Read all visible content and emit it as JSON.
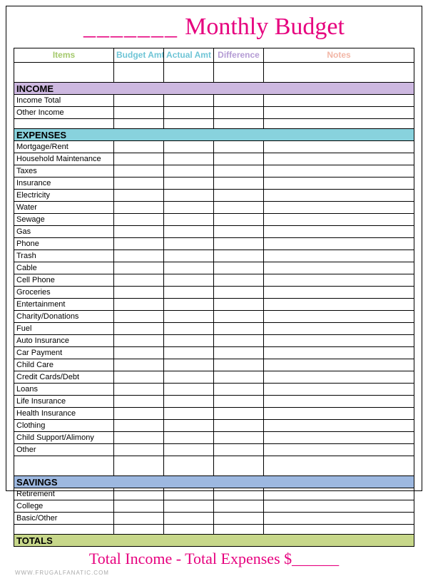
{
  "title": {
    "blank": "_______",
    "text": "Monthly Budget"
  },
  "columns": {
    "items": {
      "label": "Items",
      "color": "#a4c96b"
    },
    "budget": {
      "label": "Budget Amt",
      "color": "#6fc5d6"
    },
    "actual": {
      "label": "Actual Amt",
      "color": "#6fc5d6"
    },
    "diff": {
      "label": "Difference",
      "color": "#b49bd4"
    },
    "notes": {
      "label": "Notes",
      "color": "#f2b6a6"
    }
  },
  "sections": {
    "income": {
      "label": "INCOME",
      "bg": "#cdb8e0"
    },
    "expenses": {
      "label": "EXPENSES",
      "bg": "#88d2dd"
    },
    "savings": {
      "label": "SAVINGS",
      "bg": "#9db8e0"
    },
    "totals": {
      "label": "TOTALS",
      "bg": "#c7d78a"
    }
  },
  "income_rows": [
    "Income Total",
    "Other Income"
  ],
  "expense_rows": [
    "Mortgage/Rent",
    "Household Maintenance",
    "Taxes",
    "Insurance",
    "Electricity",
    "Water",
    "Sewage",
    "Gas",
    "Phone",
    "Trash",
    "Cable",
    "Cell Phone",
    "Groceries",
    "Entertainment",
    "Charity/Donations",
    "Fuel",
    "Auto Insurance",
    "Car Payment",
    "Child Care",
    "Credit Cards/Debt",
    "Loans",
    "Life Insurance",
    "Health Insurance",
    "Clothing",
    "Child Support/Alimony",
    "Other"
  ],
  "savings_rows": [
    "Retirement",
    "College",
    "Basic/Other"
  ],
  "footer": "Total Income - Total Expenses $______",
  "credit": "www.frugalfanatic.com"
}
